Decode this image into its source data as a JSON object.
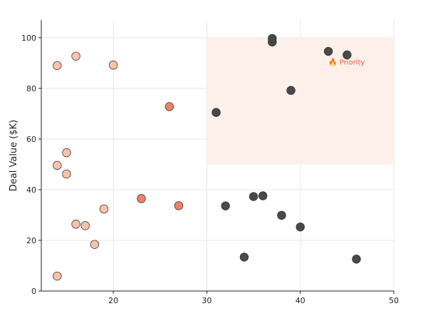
{
  "chart_data": {
    "type": "scatter",
    "title": "",
    "xlabel": "",
    "ylabel": "Deal Value ($K)",
    "xlim": [
      12.3,
      50
    ],
    "ylim": [
      0,
      107
    ],
    "xticks": [
      20,
      30,
      40,
      50
    ],
    "yticks": [
      0,
      20,
      40,
      60,
      80,
      100
    ],
    "grid": true,
    "highlight_region": {
      "x": [
        30,
        50
      ],
      "y": [
        50,
        100
      ],
      "color": "#fdeee8"
    },
    "annotation": {
      "text": "🔥 Priority",
      "x": 43,
      "y": 90,
      "color": "#e8583a"
    },
    "points": [
      {
        "x": 14,
        "y": 89,
        "color": "#f9c3a9"
      },
      {
        "x": 16,
        "y": 92.7,
        "color": "#f9c3a9"
      },
      {
        "x": 20,
        "y": 89.2,
        "color": "#f9c3a9"
      },
      {
        "x": 14,
        "y": 49.6,
        "color": "#f9c3a9"
      },
      {
        "x": 15,
        "y": 54.6,
        "color": "#f9c3a9"
      },
      {
        "x": 15,
        "y": 46.2,
        "color": "#f9c3a9"
      },
      {
        "x": 14,
        "y": 5.9,
        "color": "#f9c3a9"
      },
      {
        "x": 16,
        "y": 26.4,
        "color": "#f9c3a9"
      },
      {
        "x": 17,
        "y": 25.8,
        "color": "#f9c3a9"
      },
      {
        "x": 18,
        "y": 18.4,
        "color": "#f9c3a9"
      },
      {
        "x": 19,
        "y": 32.4,
        "color": "#f9c3a9"
      },
      {
        "x": 23,
        "y": 36.5,
        "color": "#ef8265"
      },
      {
        "x": 26,
        "y": 72.8,
        "color": "#ef8265"
      },
      {
        "x": 27,
        "y": 33.7,
        "color": "#ef8265"
      },
      {
        "x": 31,
        "y": 70.5,
        "color": "#494949"
      },
      {
        "x": 32,
        "y": 33.6,
        "color": "#494949"
      },
      {
        "x": 34,
        "y": 13.4,
        "color": "#494949"
      },
      {
        "x": 35,
        "y": 37.3,
        "color": "#494949"
      },
      {
        "x": 36,
        "y": 37.6,
        "color": "#494949"
      },
      {
        "x": 37,
        "y": 98.3,
        "color": "#494949"
      },
      {
        "x": 37,
        "y": 99.7,
        "color": "#494949"
      },
      {
        "x": 38,
        "y": 29.9,
        "color": "#494949"
      },
      {
        "x": 39,
        "y": 79.2,
        "color": "#494949"
      },
      {
        "x": 40,
        "y": 25.3,
        "color": "#494949"
      },
      {
        "x": 43,
        "y": 94.6,
        "color": "#494949"
      },
      {
        "x": 45,
        "y": 93.2,
        "color": "#494949"
      },
      {
        "x": 46,
        "y": 12.6,
        "color": "#494949"
      }
    ]
  }
}
